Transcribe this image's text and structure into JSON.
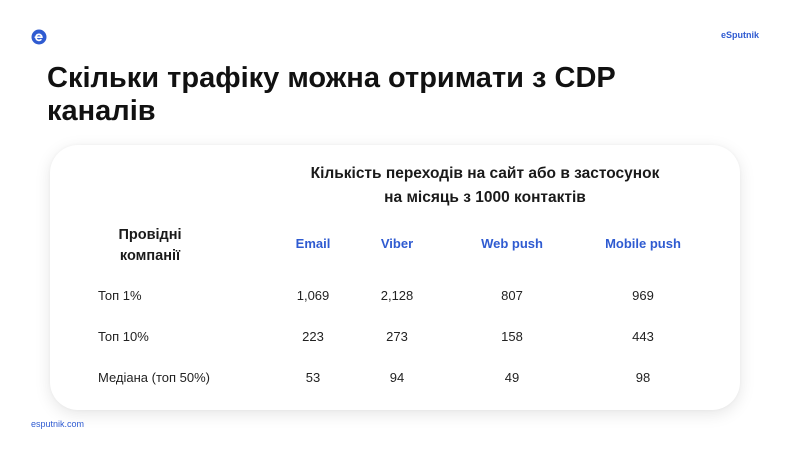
{
  "brand": {
    "name": "eSputnik",
    "footer_url": "esputnik.com"
  },
  "slide": {
    "title": "Скільки трафіку можна отримати з CDP каналів"
  },
  "table": {
    "subtitle_line1": "Кількість переходів на сайт або в застосунок",
    "subtitle_line2": "на місяць з 1000 контактів",
    "row_header_line1": "Провідні",
    "row_header_line2": "компанії",
    "columns": [
      "Email",
      "Viber",
      "Web push",
      "Mobile push"
    ],
    "rows": [
      {
        "label": "Топ 1%",
        "values": [
          "1,069",
          "2,128",
          "807",
          "969"
        ]
      },
      {
        "label": "Топ 10%",
        "values": [
          "223",
          "273",
          "158",
          "443"
        ]
      },
      {
        "label": "Медіана (топ 50%)",
        "values": [
          "53",
          "94",
          "49",
          "98"
        ]
      }
    ]
  },
  "colors": {
    "accent": "#2f5bd1",
    "text": "#111111",
    "background": "#ffffff"
  },
  "icons": {
    "logo": "esputnik-logo-icon"
  }
}
